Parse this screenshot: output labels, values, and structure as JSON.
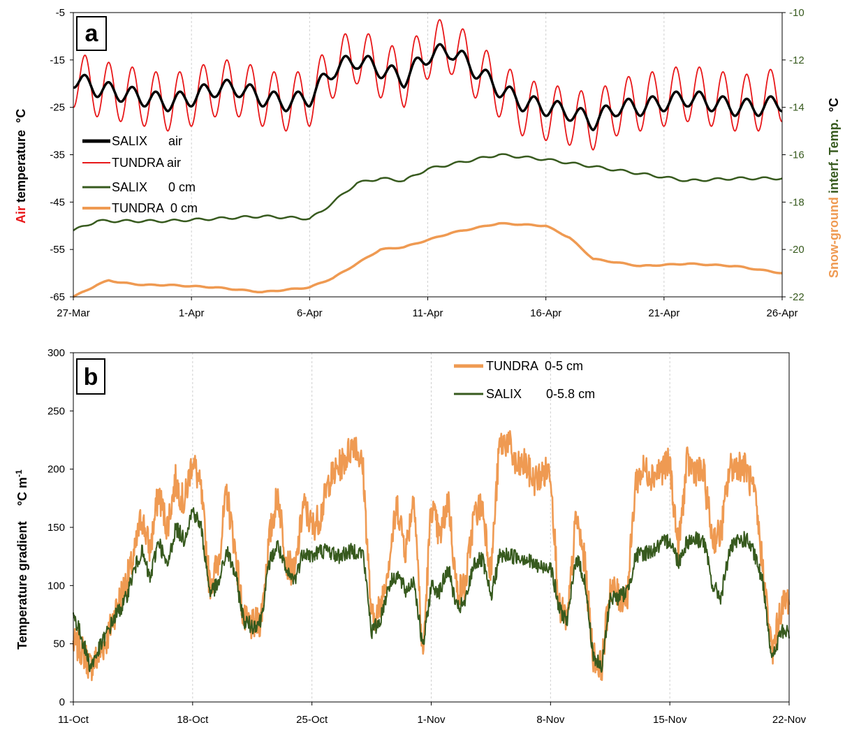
{
  "chart_data": [
    {
      "panel": "a",
      "type": "line",
      "ylabel_left": {
        "part1": "Air",
        "part2": " temperature",
        "unit": "°C"
      },
      "ylabel_right": {
        "part1": "Snow-ground",
        "part2": " interf. Temp.",
        "unit": "°C"
      },
      "x_ticks": [
        "27-Mar",
        "1-Apr",
        "6-Apr",
        "11-Apr",
        "16-Apr",
        "21-Apr",
        "26-Apr"
      ],
      "xlim_days": [
        0,
        30
      ],
      "ylim_left": [
        -65,
        -5
      ],
      "y_ticks_left": [
        "-5",
        "-15",
        "-25",
        "-35",
        "-45",
        "-55",
        "-65"
      ],
      "ylim_right": [
        -22,
        -10
      ],
      "y_ticks_right": [
        "-10",
        "-12",
        "-14",
        "-16",
        "-18",
        "-20",
        "-22"
      ],
      "grid": "vertical",
      "legend_position": "left",
      "colors": {
        "salix_air": "#000000",
        "tundra_air": "#e8181a",
        "salix_0cm": "#375a1e",
        "tundra_0cm": "#ef9a52",
        "label_red": "#e8181a",
        "label_orange": "#ef9a52",
        "label_green": "#375a1e",
        "right_tick": "#375a1e"
      },
      "series": [
        {
          "name": "SALIX      air",
          "axis": "left",
          "mean_x": [
            0,
            1,
            2,
            3,
            4,
            5,
            6,
            7,
            8,
            9,
            10,
            11,
            12,
            13,
            14,
            15,
            16,
            17,
            18,
            19,
            20,
            21,
            22,
            23,
            24,
            25,
            26,
            27,
            28,
            29,
            30
          ],
          "mean": [
            -19,
            -21,
            -22,
            -23,
            -24,
            -23,
            -21,
            -21,
            -23,
            -24,
            -23,
            -17,
            -15,
            -17,
            -19,
            -14,
            -13,
            -17,
            -21,
            -24,
            -25,
            -26,
            -28,
            -25,
            -25,
            -24,
            -23,
            -24,
            -25,
            -25,
            -24
          ],
          "amplitude": 1.8
        },
        {
          "name": "TUNDRA air",
          "axis": "left",
          "mean_x": [
            0,
            1,
            2,
            3,
            4,
            5,
            6,
            7,
            8,
            9,
            10,
            11,
            12,
            13,
            14,
            15,
            16,
            17,
            18,
            19,
            20,
            21,
            22,
            23,
            24,
            25,
            26,
            27,
            28,
            29,
            30
          ],
          "mean": [
            -19,
            -21,
            -22,
            -23,
            -24,
            -23,
            -21,
            -21,
            -23,
            -24,
            -23,
            -17,
            -14,
            -17,
            -19,
            -13,
            -12,
            -17,
            -21,
            -25,
            -26,
            -27,
            -28,
            -25,
            -24,
            -23,
            -22,
            -23,
            -24,
            -24,
            -22
          ],
          "amplitude": 6.0
        },
        {
          "name": "SALIX      0 cm",
          "axis": "right",
          "x": [
            0,
            1,
            2,
            4,
            6,
            8,
            10,
            10.5,
            11,
            12,
            13,
            14,
            15,
            16,
            18,
            20,
            22,
            24,
            26,
            28,
            30
          ],
          "y": [
            -19.2,
            -18.8,
            -18.8,
            -18.8,
            -18.7,
            -18.6,
            -18.7,
            -18.4,
            -18.0,
            -17.2,
            -17.0,
            -17.1,
            -16.6,
            -16.4,
            -16.0,
            -16.2,
            -16.5,
            -16.8,
            -17.1,
            -17.0,
            -17.0
          ]
        },
        {
          "name": "TUNDRA  0 cm",
          "axis": "right",
          "x": [
            0,
            1,
            1.5,
            2,
            3,
            4,
            6,
            8,
            10,
            11,
            12,
            13,
            14,
            15,
            16,
            18,
            20,
            21,
            22,
            24,
            26,
            28,
            30
          ],
          "y": [
            -22.0,
            -21.5,
            -21.3,
            -21.4,
            -21.5,
            -21.5,
            -21.6,
            -21.8,
            -21.6,
            -21.2,
            -20.6,
            -20.0,
            -19.9,
            -19.6,
            -19.3,
            -18.9,
            -19.0,
            -19.5,
            -20.4,
            -20.7,
            -20.6,
            -20.7,
            -21.0
          ]
        }
      ]
    },
    {
      "panel": "b",
      "type": "line",
      "ylabel": "Temperature gradient",
      "ylabel_unit": "°C  m",
      "ylabel_exp": "-1",
      "x_ticks": [
        "11-Oct",
        "18-Oct",
        "25-Oct",
        "1-Nov",
        "8-Nov",
        "15-Nov",
        "22-Nov"
      ],
      "xlim_days": [
        0,
        42
      ],
      "ylim": [
        0,
        300
      ],
      "y_ticks": [
        "0",
        "50",
        "100",
        "150",
        "200",
        "250",
        "300"
      ],
      "grid": "vertical",
      "legend_position": "top-right",
      "colors": {
        "tundra": "#ef9a52",
        "salix": "#375a1e"
      },
      "series": [
        {
          "name": "TUNDRA  0-5 cm",
          "x": [
            0,
            0.5,
            1,
            1.5,
            2,
            2.5,
            3,
            3.5,
            4,
            4.5,
            5,
            5.5,
            6,
            6.5,
            7,
            7.5,
            8,
            8.5,
            9,
            9.5,
            10,
            10.5,
            11,
            11.5,
            12,
            12.5,
            13,
            13.5,
            14,
            14.5,
            15,
            15.5,
            16,
            16.5,
            17,
            17.5,
            18,
            18.5,
            19,
            19.5,
            20,
            20.5,
            21,
            21.5,
            22,
            22.5,
            23,
            23.5,
            24,
            24.5,
            25,
            25.5,
            26,
            26.5,
            27,
            27.5,
            28,
            28.5,
            29,
            29.5,
            30,
            30.5,
            31,
            31.5,
            32,
            32.5,
            33,
            33.5,
            34,
            34.5,
            35,
            35.5,
            36,
            36.5,
            37,
            37.5,
            38,
            38.5,
            39,
            39.5,
            40,
            40.5,
            41,
            41.5,
            42
          ],
          "y": [
            50,
            45,
            30,
            40,
            55,
            80,
            100,
            120,
            160,
            130,
            180,
            150,
            190,
            170,
            210,
            180,
            100,
            120,
            180,
            130,
            70,
            65,
            70,
            140,
            180,
            120,
            110,
            170,
            150,
            160,
            190,
            200,
            210,
            225,
            200,
            70,
            80,
            120,
            170,
            130,
            180,
            35,
            170,
            140,
            175,
            95,
            100,
            160,
            170,
            110,
            220,
            225,
            200,
            205,
            190,
            195,
            200,
            80,
            70,
            160,
            120,
            40,
            30,
            100,
            90,
            90,
            190,
            200,
            195,
            200,
            205,
            130,
            205,
            200,
            195,
            140,
            145,
            200,
            205,
            200,
            175,
            110,
            40,
            80,
            90
          ],
          "jitter": 14
        },
        {
          "name": "SALIX       0-5.8 cm",
          "x": [
            0,
            0.5,
            1,
            1.5,
            2,
            2.5,
            3,
            3.5,
            4,
            4.5,
            5,
            5.5,
            6,
            6.5,
            7,
            7.5,
            8,
            8.5,
            9,
            9.5,
            10,
            10.5,
            11,
            11.5,
            12,
            12.5,
            13,
            13.5,
            14,
            14.5,
            15,
            15.5,
            16,
            16.5,
            17,
            17.5,
            18,
            18.5,
            19,
            19.5,
            20,
            20.5,
            21,
            21.5,
            22,
            22.5,
            23,
            23.5,
            24,
            24.5,
            25,
            25.5,
            26,
            26.5,
            27,
            27.5,
            28,
            28.5,
            29,
            29.5,
            30,
            30.5,
            31,
            31.5,
            32,
            32.5,
            33,
            33.5,
            34,
            34.5,
            35,
            35.5,
            36,
            36.5,
            37,
            37.5,
            38,
            38.5,
            39,
            39.5,
            40,
            40.5,
            41,
            41.5,
            42
          ],
          "y": [
            75,
            55,
            30,
            45,
            60,
            75,
            85,
            110,
            130,
            105,
            140,
            115,
            150,
            140,
            165,
            150,
            95,
            100,
            130,
            110,
            70,
            65,
            70,
            120,
            135,
            110,
            105,
            130,
            125,
            130,
            130,
            125,
            128,
            130,
            128,
            60,
            70,
            100,
            110,
            95,
            105,
            45,
            100,
            95,
            115,
            80,
            85,
            120,
            122,
            90,
            125,
            126,
            125,
            124,
            118,
            115,
            118,
            80,
            70,
            125,
            105,
            40,
            28,
            90,
            90,
            95,
            125,
            128,
            130,
            135,
            140,
            120,
            138,
            140,
            138,
            100,
            90,
            130,
            138,
            140,
            125,
            100,
            35,
            60,
            60
          ],
          "jitter": 7
        }
      ]
    }
  ]
}
